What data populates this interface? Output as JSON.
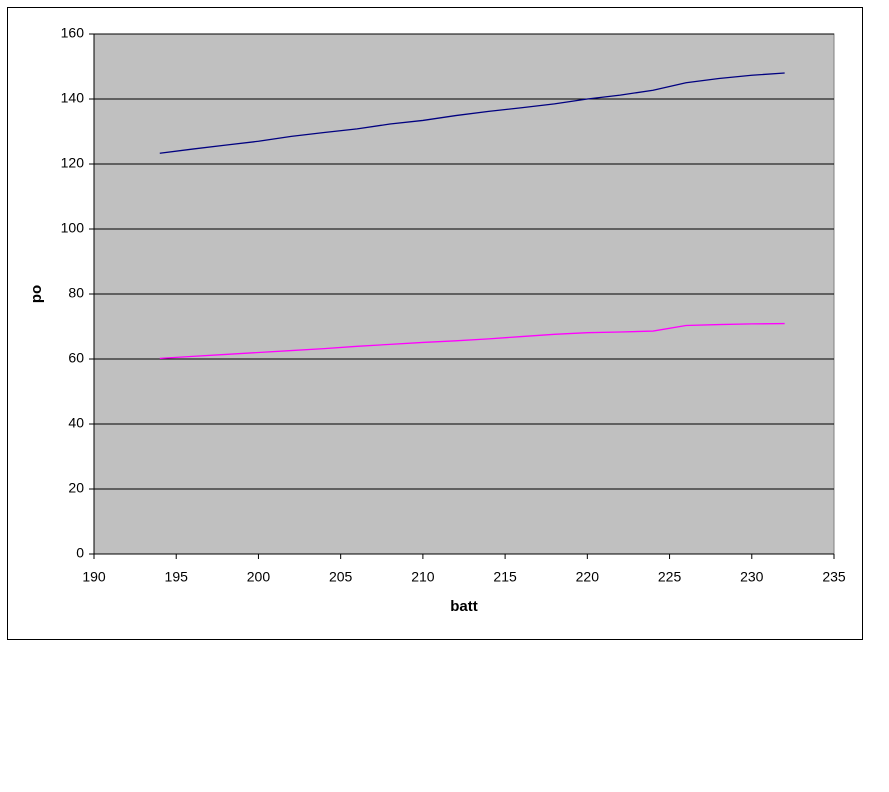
{
  "chart_data": {
    "type": "line",
    "x_label": "batt",
    "y_label": "po",
    "x": [
      194,
      196,
      198,
      200,
      202,
      204,
      206,
      208,
      210,
      212,
      214,
      216,
      218,
      220,
      222,
      224,
      226,
      228,
      230,
      232
    ],
    "series": [
      {
        "color": "#000080",
        "values": [
          123.3,
          124.6,
          125.8,
          127,
          128.5,
          129.7,
          130.8,
          132.3,
          133.4,
          134.9,
          136.2,
          137.3,
          138.5,
          140,
          141.2,
          142.7,
          145,
          146.3,
          147.3,
          148
        ]
      },
      {
        "color": "#ff00ff",
        "values": [
          60.2,
          60.8,
          61.4,
          62,
          62.6,
          63.2,
          63.9,
          64.5,
          65.1,
          65.6,
          66.2,
          66.9,
          67.6,
          68.1,
          68.3,
          68.6,
          70.3,
          70.6,
          70.8,
          70.9
        ]
      }
    ],
    "xlim": [
      190,
      235
    ],
    "xticks": [
      190,
      195,
      200,
      205,
      210,
      215,
      220,
      225,
      230,
      235
    ],
    "ylim": [
      0,
      160
    ],
    "yticks": [
      0,
      20,
      40,
      60,
      80,
      100,
      120,
      140,
      160
    ],
    "grid": true,
    "plot_background": "#c0c0c0"
  }
}
